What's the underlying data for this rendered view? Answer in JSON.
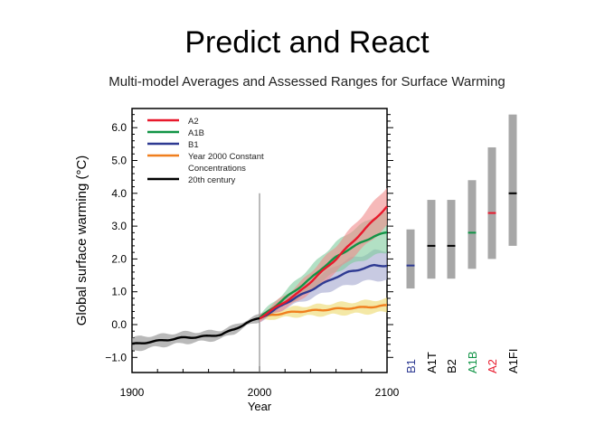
{
  "title": "Predict and React",
  "subtitle": "Multi-model Averages and Assessed Ranges for Surface Warming",
  "chart_data": {
    "type": "line",
    "xlabel": "Year",
    "ylabel": "Global surface warming (°C)",
    "xlim": [
      1900,
      2100
    ],
    "ylim": [
      -1.2,
      6.6
    ],
    "xticks": [
      1900,
      2000,
      2100
    ],
    "yticks": [
      -1.0,
      0.0,
      1.0,
      2.0,
      3.0,
      4.0,
      5.0,
      6.0
    ],
    "ytick_labels": [
      "−1.0",
      "0.0",
      "1.0",
      "2.0",
      "3.0",
      "4.0",
      "5.0",
      "6.0"
    ],
    "legend_placement": "top-left",
    "series": [
      {
        "name": "20th century",
        "color": "#000000",
        "band": "#8a8a8a",
        "x": [
          1900,
          1910,
          1920,
          1930,
          1940,
          1950,
          1960,
          1970,
          1980,
          1990,
          2000
        ],
        "values": [
          -0.6,
          -0.55,
          -0.5,
          -0.45,
          -0.4,
          -0.38,
          -0.35,
          -0.3,
          -0.15,
          0.05,
          0.2
        ],
        "spread": [
          0.2,
          0.2,
          0.18,
          0.18,
          0.17,
          0.16,
          0.15,
          0.14,
          0.12,
          0.1,
          0.1
        ]
      },
      {
        "name": "A2",
        "color": "#e8192c",
        "band": "#f08a8a",
        "x": [
          2000,
          2010,
          2020,
          2030,
          2040,
          2050,
          2060,
          2070,
          2080,
          2090,
          2100
        ],
        "values": [
          0.2,
          0.45,
          0.7,
          0.95,
          1.3,
          1.65,
          2.0,
          2.4,
          2.8,
          3.2,
          3.6
        ],
        "spread": [
          0.1,
          0.15,
          0.2,
          0.25,
          0.3,
          0.35,
          0.4,
          0.45,
          0.5,
          0.55,
          0.6
        ]
      },
      {
        "name": "A1B",
        "color": "#119446",
        "band": "#7fcc9c",
        "x": [
          2000,
          2010,
          2020,
          2030,
          2040,
          2050,
          2060,
          2070,
          2080,
          2090,
          2100
        ],
        "values": [
          0.2,
          0.5,
          0.8,
          1.1,
          1.4,
          1.75,
          2.05,
          2.3,
          2.5,
          2.7,
          2.8
        ],
        "spread": [
          0.1,
          0.15,
          0.2,
          0.3,
          0.35,
          0.4,
          0.45,
          0.5,
          0.55,
          0.6,
          0.6
        ]
      },
      {
        "name": "B1",
        "color": "#2e3a92",
        "band": "#a3a6cf",
        "x": [
          2000,
          2010,
          2020,
          2030,
          2040,
          2050,
          2060,
          2070,
          2080,
          2090,
          2100
        ],
        "values": [
          0.2,
          0.4,
          0.65,
          0.85,
          1.05,
          1.25,
          1.45,
          1.6,
          1.7,
          1.8,
          1.8
        ],
        "spread": [
          0.1,
          0.12,
          0.15,
          0.2,
          0.25,
          0.3,
          0.35,
          0.4,
          0.4,
          0.45,
          0.45
        ]
      },
      {
        "name": "Year 2000 Constant Concentrations",
        "color": "#f07f1e",
        "band": "#ecd96a",
        "x": [
          2000,
          2010,
          2020,
          2030,
          2040,
          2050,
          2060,
          2070,
          2080,
          2090,
          2100
        ],
        "values": [
          0.2,
          0.3,
          0.35,
          0.4,
          0.42,
          0.45,
          0.48,
          0.5,
          0.52,
          0.55,
          0.58
        ],
        "spread": [
          0.1,
          0.12,
          0.14,
          0.15,
          0.16,
          0.17,
          0.18,
          0.18,
          0.19,
          0.2,
          0.2
        ]
      }
    ],
    "legend": [
      {
        "label": "A2",
        "color": "#e8192c"
      },
      {
        "label": "A1B",
        "color": "#119446"
      },
      {
        "label": "B1",
        "color": "#2e3a92"
      },
      {
        "label": "Year 2000 Constant",
        "label2": "Concentrations",
        "color": "#f07f1e"
      },
      {
        "label": "20th century",
        "color": "#000000"
      }
    ],
    "ranges": [
      {
        "scenario": "B1",
        "low": 1.1,
        "best": 1.8,
        "high": 2.9,
        "color": "#2e3a92"
      },
      {
        "scenario": "A1T",
        "low": 1.4,
        "best": 2.4,
        "high": 3.8,
        "color": "#000000"
      },
      {
        "scenario": "B2",
        "low": 1.4,
        "best": 2.4,
        "high": 3.8,
        "color": "#000000"
      },
      {
        "scenario": "A1B",
        "low": 1.7,
        "best": 2.8,
        "high": 4.4,
        "color": "#119446"
      },
      {
        "scenario": "A2",
        "low": 2.0,
        "best": 3.4,
        "high": 5.4,
        "color": "#e8192c"
      },
      {
        "scenario": "A1FI",
        "low": 2.4,
        "best": 4.0,
        "high": 6.4,
        "color": "#000000"
      }
    ]
  }
}
